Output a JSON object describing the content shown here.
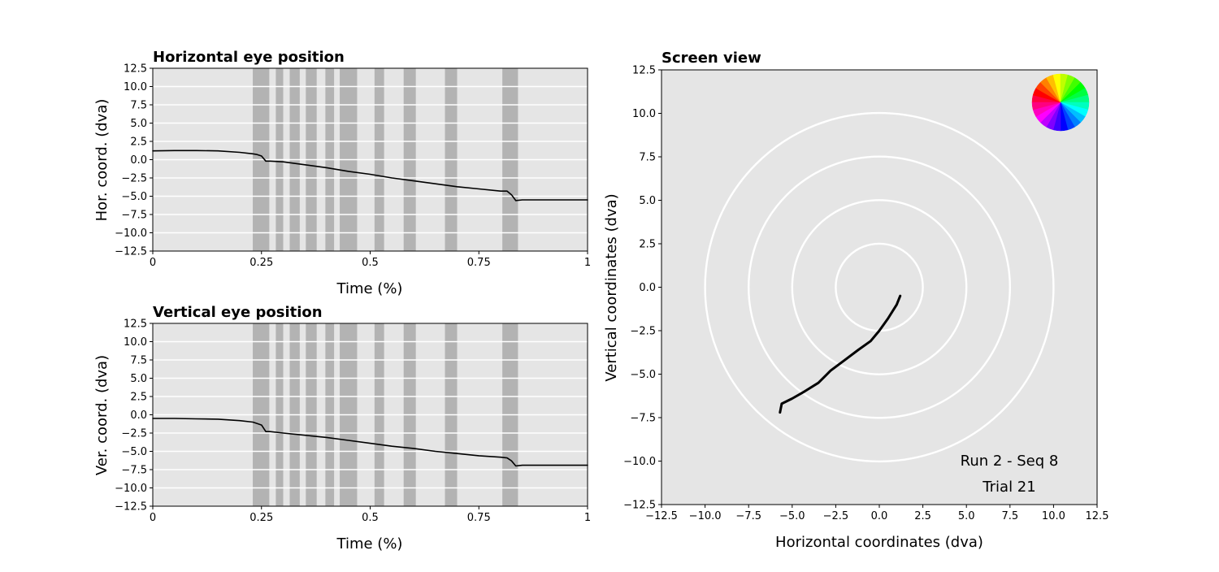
{
  "chart_data": [
    {
      "id": "horizontal",
      "type": "line",
      "title": "Horizontal eye position",
      "xlabel": "Time (%)",
      "ylabel": "Hor. coord. (dva)",
      "xlim": [
        0,
        1
      ],
      "ylim": [
        -12.5,
        12.5
      ],
      "xticks": [
        0,
        0.25,
        0.5,
        0.75,
        1
      ],
      "xtick_labels": [
        "0",
        "0.25",
        "0.5",
        "0.75",
        "1"
      ],
      "yticks": [
        -12.5,
        -10.0,
        -7.5,
        -5.0,
        -2.5,
        0.0,
        2.5,
        5.0,
        7.5,
        10.0,
        12.5
      ],
      "ytick_labels": [
        "−12.5",
        "−10.0",
        "−7.5",
        "−5.0",
        "−2.5",
        "0.0",
        "2.5",
        "5.0",
        "7.5",
        "10.0",
        "12.5"
      ],
      "grid": "horizontal",
      "shaded_intervals": [
        [
          0.23,
          0.268
        ],
        [
          0.283,
          0.3
        ],
        [
          0.315,
          0.338
        ],
        [
          0.352,
          0.377
        ],
        [
          0.397,
          0.417
        ],
        [
          0.43,
          0.47
        ],
        [
          0.51,
          0.532
        ],
        [
          0.577,
          0.605
        ],
        [
          0.672,
          0.7
        ],
        [
          0.804,
          0.84
        ]
      ],
      "x": [
        0,
        0.05,
        0.1,
        0.15,
        0.2,
        0.23,
        0.24,
        0.25,
        0.26,
        0.27,
        0.3,
        0.35,
        0.4,
        0.45,
        0.5,
        0.55,
        0.6,
        0.65,
        0.7,
        0.75,
        0.8,
        0.815,
        0.825,
        0.835,
        0.85,
        0.9,
        0.95,
        1
      ],
      "y": [
        1.2,
        1.25,
        1.25,
        1.2,
        1.0,
        0.8,
        0.7,
        0.5,
        -0.2,
        -0.2,
        -0.3,
        -0.7,
        -1.1,
        -1.6,
        -2.0,
        -2.5,
        -2.9,
        -3.3,
        -3.7,
        -4.0,
        -4.3,
        -4.3,
        -4.8,
        -5.6,
        -5.5,
        -5.5,
        -5.5,
        -5.5
      ]
    },
    {
      "id": "vertical",
      "type": "line",
      "title": "Vertical eye position",
      "xlabel": "Time (%)",
      "ylabel": "Ver. coord. (dva)",
      "xlim": [
        0,
        1
      ],
      "ylim": [
        -12.5,
        12.5
      ],
      "xticks": [
        0,
        0.25,
        0.5,
        0.75,
        1
      ],
      "xtick_labels": [
        "0",
        "0.25",
        "0.5",
        "0.75",
        "1"
      ],
      "yticks": [
        -12.5,
        -10.0,
        -7.5,
        -5.0,
        -2.5,
        0.0,
        2.5,
        5.0,
        7.5,
        10.0,
        12.5
      ],
      "ytick_labels": [
        "−12.5",
        "−10.0",
        "−7.5",
        "−5.0",
        "−2.5",
        "0.0",
        "2.5",
        "5.0",
        "7.5",
        "10.0",
        "12.5"
      ],
      "grid": "horizontal",
      "shaded_intervals": [
        [
          0.23,
          0.268
        ],
        [
          0.283,
          0.3
        ],
        [
          0.315,
          0.338
        ],
        [
          0.352,
          0.377
        ],
        [
          0.397,
          0.417
        ],
        [
          0.43,
          0.47
        ],
        [
          0.51,
          0.532
        ],
        [
          0.577,
          0.605
        ],
        [
          0.672,
          0.7
        ],
        [
          0.804,
          0.84
        ]
      ],
      "x": [
        0,
        0.05,
        0.1,
        0.15,
        0.2,
        0.23,
        0.24,
        0.25,
        0.26,
        0.27,
        0.3,
        0.35,
        0.4,
        0.45,
        0.5,
        0.55,
        0.6,
        0.65,
        0.7,
        0.75,
        0.8,
        0.815,
        0.825,
        0.835,
        0.85,
        0.9,
        0.95,
        1
      ],
      "y": [
        -0.5,
        -0.5,
        -0.55,
        -0.6,
        -0.8,
        -1.0,
        -1.2,
        -1.4,
        -2.3,
        -2.3,
        -2.5,
        -2.8,
        -3.1,
        -3.5,
        -3.9,
        -4.3,
        -4.6,
        -5.0,
        -5.3,
        -5.6,
        -5.8,
        -5.9,
        -6.3,
        -7.0,
        -6.9,
        -6.9,
        -6.9,
        -6.9
      ]
    },
    {
      "id": "screen",
      "type": "line",
      "title": "Screen view",
      "xlabel": "Horizontal coordinates (dva)",
      "ylabel": "Vertical coordinates (dva)",
      "xlim": [
        -12.5,
        12.5
      ],
      "ylim": [
        -12.5,
        12.5
      ],
      "xticks": [
        -12.5,
        -10.0,
        -7.5,
        -5.0,
        -2.5,
        0.0,
        2.5,
        5.0,
        7.5,
        10.0,
        12.5
      ],
      "xtick_labels": [
        "−12.5",
        "−10.0",
        "−7.5",
        "−5.0",
        "−2.5",
        "0.0",
        "2.5",
        "5.0",
        "7.5",
        "10.0",
        "12.5"
      ],
      "yticks": [
        -12.5,
        -10.0,
        -7.5,
        -5.0,
        -2.5,
        0.0,
        2.5,
        5.0,
        7.5,
        10.0,
        12.5
      ],
      "ytick_labels": [
        "−12.5",
        "−10.0",
        "−7.5",
        "−5.0",
        "−2.5",
        "0.0",
        "2.5",
        "5.0",
        "7.5",
        "10.0",
        "12.5"
      ],
      "circle_radii": [
        2.5,
        5.0,
        7.5,
        10.0
      ],
      "x": [
        1.2,
        1.0,
        0.5,
        0.0,
        -0.5,
        -1.2,
        -2.0,
        -2.8,
        -3.5,
        -4.3,
        -5.0,
        -5.6,
        -5.7
      ],
      "y": [
        -0.5,
        -1.0,
        -1.8,
        -2.5,
        -3.1,
        -3.6,
        -4.2,
        -4.8,
        -5.5,
        -6.0,
        -6.4,
        -6.7,
        -7.2
      ],
      "annotations": [
        "Run 2 - Seq 8",
        "Trial 21"
      ]
    }
  ],
  "colors": {
    "axes_bg": "#e5e5e5",
    "shade": "#b3b3b3",
    "grid": "#ffffff",
    "trace": "#000000"
  },
  "color_wheel_icon": "hue-color-wheel"
}
